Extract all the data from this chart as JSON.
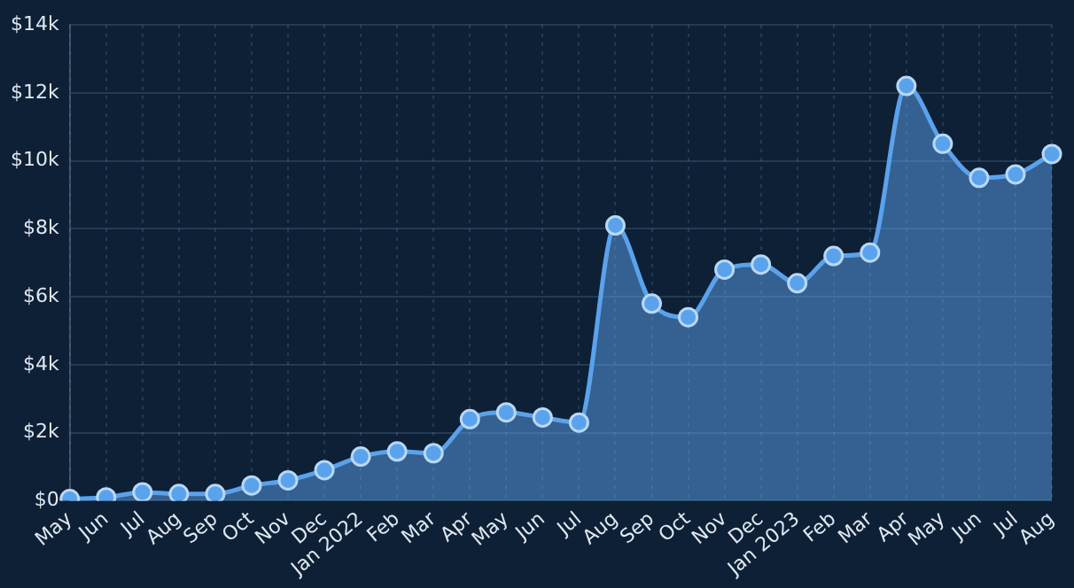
{
  "chart_data": {
    "type": "area",
    "categories": [
      "May",
      "Jun",
      "Jul",
      "Aug",
      "Sep",
      "Oct",
      "Nov",
      "Dec",
      "Jan 2022",
      "Feb",
      "Mar",
      "Apr",
      "May",
      "Jun",
      "Jul",
      "Aug",
      "Sep",
      "Oct",
      "Nov",
      "Dec",
      "Jan 2023",
      "Feb",
      "Mar",
      "Apr",
      "May",
      "Jun",
      "Jul",
      "Aug"
    ],
    "series": [
      {
        "color": "#5aa2ec",
        "values": [
          50,
          100,
          250,
          200,
          200,
          450,
          600,
          900,
          1300,
          1450,
          1400,
          2400,
          2600,
          2450,
          2300,
          8100,
          5800,
          5400,
          6800,
          6950,
          6400,
          7200,
          7300,
          12200,
          10500,
          9500,
          9600,
          10200
        ]
      }
    ],
    "ylim": [
      0,
      14000
    ],
    "yticks": [
      {
        "value": 0,
        "label": "$0"
      },
      {
        "value": 2000,
        "label": "$2k"
      },
      {
        "value": 4000,
        "label": "$4k"
      },
      {
        "value": 6000,
        "label": "$6k"
      },
      {
        "value": 8000,
        "label": "$8k"
      },
      {
        "value": 10000,
        "label": "$10k"
      },
      {
        "value": 12000,
        "label": "$12k"
      },
      {
        "value": 14000,
        "label": "$14k"
      }
    ],
    "grid": true,
    "marker": "circle",
    "line_style": "solid",
    "legend": false
  }
}
